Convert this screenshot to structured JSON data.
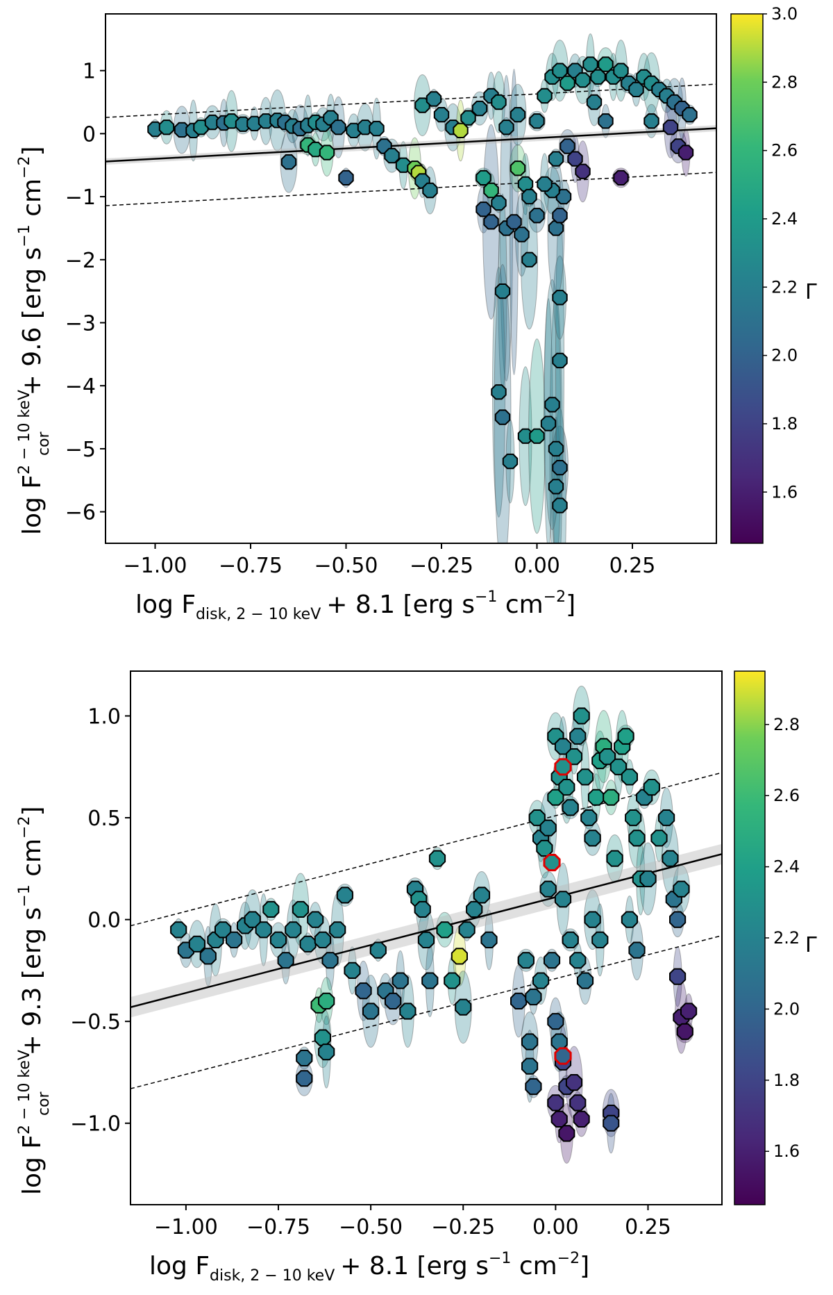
{
  "chart_data": [
    {
      "type": "scatter",
      "panel": "top",
      "xlabel": {
        "main": "log F",
        "sub": "disk, 2 − 10 keV",
        "tail": "+ 8.1  [erg s",
        "sup1": "−1",
        "mid": " cm",
        "sup2": "−2",
        "end": "]"
      },
      "ylabel": {
        "main": "log F",
        "sup": "2 − 10 keV",
        "sub": "cor",
        "tail": "+ 9.6  [erg s",
        "sup1": "−1",
        "mid": " cm",
        "sup2": "−2",
        "end": "]"
      },
      "xlim": [
        -1.13,
        0.47
      ],
      "ylim": [
        -6.5,
        1.9
      ],
      "xticks": [
        -1.0,
        -0.75,
        -0.5,
        -0.25,
        0.0,
        0.25
      ],
      "xtick_labels": [
        "−1.00",
        "−0.75",
        "−0.50",
        "−0.25",
        "0.00",
        "0.25"
      ],
      "yticks": [
        1,
        0,
        -1,
        -2,
        -3,
        -4,
        -5,
        -6
      ],
      "ytick_labels": [
        "1",
        "0",
        "−1",
        "−2",
        "−3",
        "−4",
        "−5",
        "−6"
      ],
      "fit": {
        "slope": 0.33,
        "intercept": -0.07,
        "scatter": 0.7
      },
      "colorbar": {
        "label": "Γ",
        "range": [
          1.45,
          3.0
        ],
        "ticks": [
          1.6,
          1.8,
          2.0,
          2.2,
          2.4,
          2.6,
          2.8,
          3.0
        ],
        "tick_labels": [
          "1.6",
          "1.8",
          "2.0",
          "2.2",
          "2.4",
          "2.6",
          "2.8",
          "3.0"
        ]
      },
      "points": [
        [
          -1.0,
          0.07,
          2.2
        ],
        [
          -0.97,
          0.1,
          2.3
        ],
        [
          -0.93,
          0.06,
          2.1
        ],
        [
          -0.9,
          0.05,
          2.2
        ],
        [
          -0.88,
          0.1,
          2.3
        ],
        [
          -0.85,
          0.18,
          2.2
        ],
        [
          -0.82,
          0.17,
          2.1
        ],
        [
          -0.8,
          0.2,
          2.3
        ],
        [
          -0.77,
          0.15,
          2.2
        ],
        [
          -0.74,
          0.16,
          2.2
        ],
        [
          -0.71,
          0.2,
          2.2
        ],
        [
          -0.68,
          0.21,
          2.2
        ],
        [
          -0.66,
          0.18,
          2.1
        ],
        [
          -0.64,
          0.12,
          2.2
        ],
        [
          -0.62,
          0.08,
          2.1
        ],
        [
          -0.6,
          0.13,
          2.2
        ],
        [
          -0.58,
          0.18,
          2.3
        ],
        [
          -0.56,
          0.15,
          2.2
        ],
        [
          -0.54,
          0.25,
          2.2
        ],
        [
          -0.52,
          0.1,
          2.1
        ],
        [
          -0.6,
          -0.18,
          2.6
        ],
        [
          -0.58,
          -0.25,
          2.5
        ],
        [
          -0.55,
          -0.3,
          2.6
        ],
        [
          -0.65,
          -0.45,
          2.1
        ],
        [
          -0.5,
          -0.7,
          2.0
        ],
        [
          -0.48,
          0.05,
          2.2
        ],
        [
          -0.45,
          0.1,
          2.2
        ],
        [
          -0.42,
          0.08,
          2.2
        ],
        [
          -0.4,
          -0.2,
          2.1
        ],
        [
          -0.38,
          -0.35,
          2.2
        ],
        [
          -0.35,
          -0.5,
          2.3
        ],
        [
          -0.32,
          -0.55,
          2.8
        ],
        [
          -0.31,
          -0.62,
          2.9
        ],
        [
          -0.3,
          -0.75,
          2.2
        ],
        [
          -0.28,
          -0.9,
          2.2
        ],
        [
          -0.3,
          0.45,
          2.3
        ],
        [
          -0.27,
          0.55,
          2.2
        ],
        [
          -0.25,
          0.3,
          2.2
        ],
        [
          -0.22,
          0.1,
          2.2
        ],
        [
          -0.2,
          0.05,
          2.9
        ],
        [
          -0.18,
          0.25,
          2.3
        ],
        [
          -0.15,
          0.4,
          2.2
        ],
        [
          -0.12,
          0.6,
          2.2
        ],
        [
          -0.1,
          0.5,
          2.3
        ],
        [
          -0.14,
          -0.7,
          2.4
        ],
        [
          -0.12,
          -0.9,
          2.6
        ],
        [
          -0.14,
          -1.2,
          2.0
        ],
        [
          -0.12,
          -1.4,
          2.0
        ],
        [
          -0.1,
          -1.1,
          2.2
        ],
        [
          -0.08,
          -1.5,
          2.1
        ],
        [
          -0.05,
          -0.55,
          2.7
        ],
        [
          -0.03,
          -0.8,
          2.3
        ],
        [
          -0.02,
          -1.0,
          2.2
        ],
        [
          0.0,
          -1.3,
          2.1
        ],
        [
          -0.06,
          -1.4,
          2.0
        ],
        [
          -0.04,
          -1.6,
          2.1
        ],
        [
          -0.02,
          -2.0,
          2.2
        ],
        [
          -0.09,
          -2.5,
          2.2
        ],
        [
          -0.1,
          -4.1,
          2.2
        ],
        [
          -0.09,
          -4.5,
          2.1
        ],
        [
          -0.07,
          -5.2,
          2.2
        ],
        [
          -0.03,
          -4.8,
          2.3
        ],
        [
          0.0,
          -4.8,
          2.4
        ],
        [
          0.03,
          -4.6,
          2.2
        ],
        [
          0.05,
          -5.0,
          2.2
        ],
        [
          0.06,
          -5.3,
          2.1
        ],
        [
          0.05,
          -5.6,
          2.2
        ],
        [
          0.06,
          -5.9,
          2.2
        ],
        [
          0.04,
          -4.3,
          2.2
        ],
        [
          0.06,
          -3.6,
          2.2
        ],
        [
          0.06,
          -2.6,
          2.2
        ],
        [
          0.05,
          -1.5,
          2.1
        ],
        [
          0.06,
          -1.3,
          2.0
        ],
        [
          0.07,
          -1.0,
          2.1
        ],
        [
          0.04,
          -0.9,
          2.2
        ],
        [
          0.02,
          -0.8,
          2.2
        ],
        [
          0.05,
          -0.4,
          2.2
        ],
        [
          0.08,
          -0.2,
          2.0
        ],
        [
          0.1,
          -0.4,
          1.8
        ],
        [
          0.12,
          -0.6,
          1.7
        ],
        [
          0.0,
          0.2,
          2.2
        ],
        [
          0.02,
          0.6,
          2.3
        ],
        [
          0.04,
          0.9,
          2.3
        ],
        [
          0.06,
          1.0,
          2.3
        ],
        [
          0.08,
          0.8,
          2.4
        ],
        [
          0.1,
          1.0,
          2.2
        ],
        [
          0.12,
          0.85,
          2.3
        ],
        [
          0.14,
          1.1,
          2.3
        ],
        [
          0.16,
          0.9,
          2.3
        ],
        [
          0.18,
          1.1,
          2.4
        ],
        [
          0.2,
          0.9,
          2.3
        ],
        [
          0.22,
          1.0,
          2.3
        ],
        [
          0.24,
          0.8,
          2.2
        ],
        [
          0.26,
          0.7,
          2.2
        ],
        [
          0.28,
          0.9,
          2.3
        ],
        [
          0.3,
          0.8,
          2.3
        ],
        [
          0.32,
          0.7,
          2.2
        ],
        [
          0.34,
          0.6,
          2.2
        ],
        [
          0.36,
          0.5,
          2.1
        ],
        [
          0.38,
          0.4,
          2.0
        ],
        [
          0.4,
          0.3,
          2.1
        ],
        [
          0.37,
          -0.2,
          1.8
        ],
        [
          0.39,
          -0.3,
          1.6
        ],
        [
          0.35,
          0.1,
          1.8
        ],
        [
          0.22,
          -0.7,
          1.6
        ],
        [
          0.18,
          0.2,
          2.1
        ],
        [
          0.15,
          0.5,
          2.2
        ],
        [
          -0.05,
          0.3,
          2.2
        ],
        [
          -0.08,
          0.1,
          2.2
        ],
        [
          0.3,
          0.2,
          2.2
        ]
      ]
    },
    {
      "type": "scatter",
      "panel": "bottom",
      "xlabel": {
        "main": "log F",
        "sub": "disk, 2 − 10 keV",
        "tail": "+ 8.1  [erg s",
        "sup1": "−1",
        "mid": " cm",
        "sup2": "−2",
        "end": "]"
      },
      "ylabel": {
        "main": "log F",
        "sup": "2 − 10 keV",
        "sub": "cor",
        "tail": "+ 9.3  [erg s",
        "sup1": "−1",
        "mid": " cm",
        "sup2": "−2",
        "end": "]"
      },
      "xlim": [
        -1.15,
        0.45
      ],
      "ylim": [
        -1.4,
        1.22
      ],
      "xticks": [
        -1.0,
        -0.75,
        -0.5,
        -0.25,
        0.0,
        0.25
      ],
      "xtick_labels": [
        "−1.00",
        "−0.75",
        "−0.50",
        "−0.25",
        "0.00",
        "0.25"
      ],
      "yticks": [
        1.0,
        0.5,
        0.0,
        -0.5,
        -1.0
      ],
      "ytick_labels": [
        "1.0",
        "0.5",
        "0.0",
        "−0.5",
        "−1.0"
      ],
      "fit": {
        "slope": 0.47,
        "intercept": 0.11,
        "scatter": 0.4
      },
      "colorbar": {
        "label": "Γ",
        "range": [
          1.45,
          2.95
        ],
        "ticks": [
          1.6,
          1.8,
          2.0,
          2.2,
          2.4,
          2.6,
          2.8
        ],
        "tick_labels": [
          "1.6",
          "1.8",
          "2.0",
          "2.2",
          "2.4",
          "2.6",
          "2.8"
        ]
      },
      "highlighted": [
        [
          0.02,
          0.75,
          2.3
        ],
        [
          -0.01,
          0.28,
          2.3
        ],
        [
          0.02,
          -0.67,
          2.0
        ]
      ],
      "points": [
        [
          -1.02,
          -0.05,
          2.2
        ],
        [
          -1.0,
          -0.15,
          2.1
        ],
        [
          -0.97,
          -0.12,
          2.2
        ],
        [
          -0.94,
          -0.18,
          2.1
        ],
        [
          -0.92,
          -0.1,
          2.2
        ],
        [
          -0.9,
          -0.05,
          2.2
        ],
        [
          -0.87,
          -0.1,
          2.1
        ],
        [
          -0.84,
          -0.03,
          2.2
        ],
        [
          -0.82,
          0.0,
          2.2
        ],
        [
          -0.79,
          -0.05,
          2.2
        ],
        [
          -0.77,
          0.05,
          2.3
        ],
        [
          -0.75,
          -0.1,
          2.2
        ],
        [
          -0.73,
          -0.2,
          2.1
        ],
        [
          -0.71,
          -0.05,
          2.2
        ],
        [
          -0.69,
          0.05,
          2.3
        ],
        [
          -0.67,
          -0.12,
          2.2
        ],
        [
          -0.65,
          0.0,
          2.2
        ],
        [
          -0.63,
          -0.1,
          2.2
        ],
        [
          -0.61,
          -0.2,
          2.1
        ],
        [
          -0.59,
          -0.05,
          2.2
        ],
        [
          -0.57,
          0.12,
          2.2
        ],
        [
          -0.64,
          -0.42,
          2.6
        ],
        [
          -0.62,
          -0.4,
          2.5
        ],
        [
          -0.63,
          -0.58,
          2.3
        ],
        [
          -0.62,
          -0.65,
          2.2
        ],
        [
          -0.68,
          -0.68,
          2.1
        ],
        [
          -0.68,
          -0.78,
          2.0
        ],
        [
          -0.55,
          -0.25,
          2.2
        ],
        [
          -0.52,
          -0.35,
          2.0
        ],
        [
          -0.5,
          -0.45,
          2.1
        ],
        [
          -0.48,
          -0.15,
          2.2
        ],
        [
          -0.46,
          -0.35,
          2.1
        ],
        [
          -0.44,
          -0.4,
          2.0
        ],
        [
          -0.42,
          -0.3,
          2.1
        ],
        [
          -0.4,
          -0.45,
          2.2
        ],
        [
          -0.38,
          0.15,
          2.2
        ],
        [
          -0.37,
          0.1,
          2.3
        ],
        [
          -0.36,
          0.05,
          2.2
        ],
        [
          -0.35,
          -0.1,
          2.2
        ],
        [
          -0.34,
          -0.3,
          2.1
        ],
        [
          -0.32,
          0.3,
          2.3
        ],
        [
          -0.3,
          -0.05,
          2.4
        ],
        [
          -0.28,
          -0.3,
          2.3
        ],
        [
          -0.26,
          -0.18,
          2.9
        ],
        [
          -0.25,
          -0.43,
          2.2
        ],
        [
          -0.24,
          -0.05,
          2.2
        ],
        [
          -0.22,
          0.05,
          2.2
        ],
        [
          -0.2,
          0.12,
          2.2
        ],
        [
          -0.18,
          -0.1,
          2.1
        ],
        [
          -0.1,
          -0.4,
          2.0
        ],
        [
          -0.08,
          -0.2,
          2.2
        ],
        [
          -0.06,
          -0.38,
          2.1
        ],
        [
          -0.04,
          -0.3,
          2.2
        ],
        [
          -0.07,
          -0.6,
          2.1
        ],
        [
          -0.07,
          -0.72,
          2.1
        ],
        [
          -0.06,
          -0.82,
          2.0
        ],
        [
          -0.05,
          0.5,
          2.3
        ],
        [
          -0.04,
          0.4,
          2.2
        ],
        [
          -0.03,
          0.35,
          2.3
        ],
        [
          -0.02,
          0.45,
          2.2
        ],
        [
          0.0,
          0.6,
          2.4
        ],
        [
          0.01,
          0.7,
          2.3
        ],
        [
          0.0,
          0.9,
          2.3
        ],
        [
          0.02,
          0.85,
          2.2
        ],
        [
          0.03,
          0.65,
          2.3
        ],
        [
          0.04,
          0.55,
          2.2
        ],
        [
          0.05,
          0.8,
          2.3
        ],
        [
          0.06,
          0.9,
          2.2
        ],
        [
          0.07,
          1.0,
          2.3
        ],
        [
          0.08,
          0.7,
          2.3
        ],
        [
          0.09,
          0.5,
          2.2
        ],
        [
          0.1,
          0.4,
          2.2
        ],
        [
          0.11,
          0.6,
          2.4
        ],
        [
          0.12,
          0.78,
          2.4
        ],
        [
          0.13,
          0.85,
          2.5
        ],
        [
          0.14,
          0.8,
          2.3
        ],
        [
          0.15,
          0.6,
          2.5
        ],
        [
          0.16,
          0.3,
          2.3
        ],
        [
          0.17,
          0.75,
          2.3
        ],
        [
          0.18,
          0.85,
          2.4
        ],
        [
          0.19,
          0.9,
          2.4
        ],
        [
          0.2,
          0.7,
          2.3
        ],
        [
          0.21,
          0.5,
          2.3
        ],
        [
          0.22,
          0.4,
          2.3
        ],
        [
          0.23,
          0.2,
          2.3
        ],
        [
          0.24,
          0.6,
          2.2
        ],
        [
          0.26,
          0.65,
          2.3
        ],
        [
          0.28,
          0.4,
          2.3
        ],
        [
          0.3,
          0.5,
          2.2
        ],
        [
          0.31,
          0.3,
          2.2
        ],
        [
          0.32,
          0.1,
          2.1
        ],
        [
          0.33,
          0.0,
          2.0
        ],
        [
          0.34,
          0.15,
          2.2
        ],
        [
          0.33,
          -0.28,
          1.8
        ],
        [
          0.34,
          -0.48,
          1.6
        ],
        [
          0.35,
          -0.55,
          1.55
        ],
        [
          0.36,
          -0.45,
          1.6
        ],
        [
          0.0,
          -0.5,
          2.0
        ],
        [
          0.01,
          -0.6,
          2.1
        ],
        [
          0.02,
          -0.7,
          1.8
        ],
        [
          0.03,
          -0.82,
          1.8
        ],
        [
          0.0,
          -0.9,
          1.7
        ],
        [
          0.01,
          -0.98,
          1.6
        ],
        [
          0.03,
          -1.05,
          1.55
        ],
        [
          0.05,
          -0.8,
          1.7
        ],
        [
          0.06,
          -0.9,
          1.7
        ],
        [
          0.07,
          -0.98,
          1.6
        ],
        [
          0.15,
          -0.95,
          1.8
        ],
        [
          0.15,
          -1.0,
          1.9
        ],
        [
          0.02,
          0.1,
          2.2
        ],
        [
          0.04,
          -0.1,
          2.2
        ],
        [
          0.06,
          -0.2,
          2.2
        ],
        [
          0.08,
          -0.3,
          2.1
        ],
        [
          0.1,
          0.0,
          2.2
        ],
        [
          0.12,
          -0.1,
          2.2
        ],
        [
          -0.01,
          -0.2,
          2.1
        ],
        [
          -0.02,
          0.15,
          2.2
        ],
        [
          0.2,
          0.0,
          2.2
        ],
        [
          0.22,
          -0.15,
          2.1
        ],
        [
          0.25,
          0.2,
          2.2
        ]
      ]
    }
  ]
}
